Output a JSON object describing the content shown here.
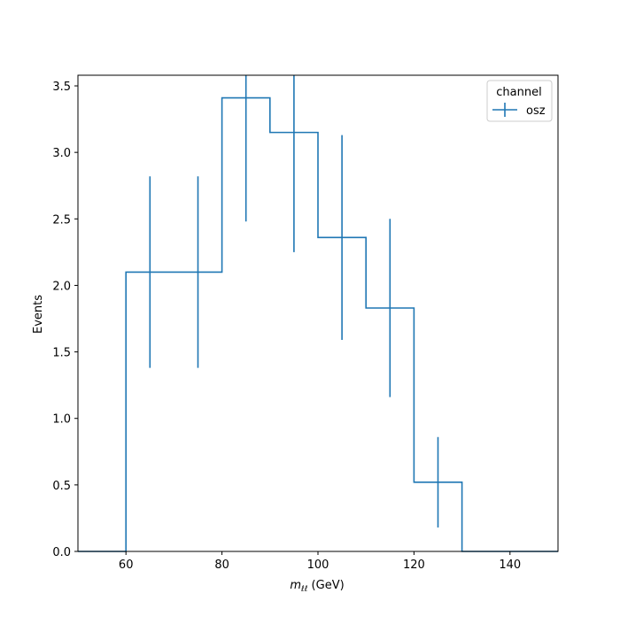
{
  "chart_data": {
    "type": "histogram",
    "xlabel_main": "m",
    "xlabel_sub": "ℓℓ",
    "xlabel_unit": " (GeV)",
    "ylabel": "Events",
    "xlim": [
      50,
      150
    ],
    "ylim": [
      0,
      3.58
    ],
    "xticks": [
      60,
      80,
      100,
      120,
      140
    ],
    "yticks": [
      0.0,
      0.5,
      1.0,
      1.5,
      2.0,
      2.5,
      3.0,
      3.5
    ],
    "ytick_labels": [
      "0.0",
      "0.5",
      "1.0",
      "1.5",
      "2.0",
      "2.5",
      "3.0",
      "3.5"
    ],
    "bin_edges": [
      50,
      60,
      70,
      80,
      90,
      100,
      110,
      120,
      130,
      140,
      150
    ],
    "values": [
      0,
      2.1,
      2.1,
      3.41,
      3.15,
      2.36,
      1.83,
      0.52,
      0,
      0
    ],
    "errors": [
      0,
      0.72,
      0.72,
      0.93,
      0.9,
      0.77,
      0.67,
      0.34,
      0,
      0
    ],
    "series_color": "#1f77b4",
    "legend": {
      "title": "channel",
      "entries": [
        "osz"
      ],
      "placement": "upper right"
    },
    "grid": false
  }
}
